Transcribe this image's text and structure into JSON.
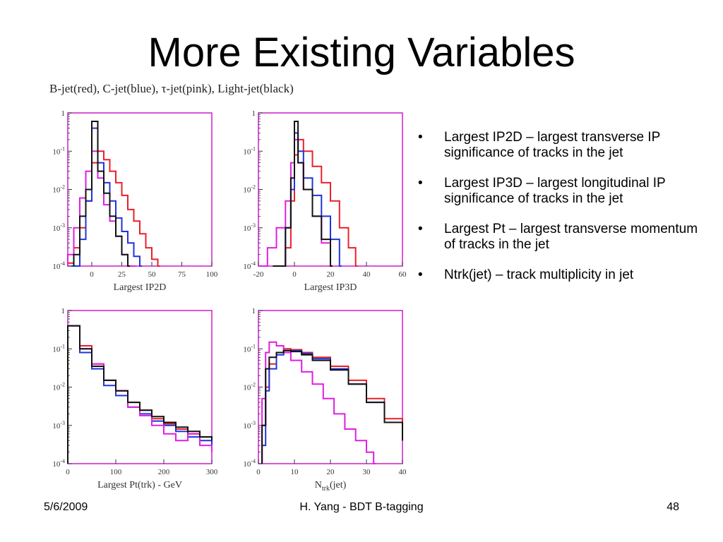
{
  "slide": {
    "title": "More Existing Variables",
    "legend_text": "B-jet(red), C-jet(blue), τ-jet(pink), Light-jet(black)",
    "bullets": [
      "Largest IP2D – largest transverse IP significance of tracks in the jet",
      "Largest IP3D – largest longitudinal IP significance of tracks in the jet",
      "Largest Pt – largest transverse momentum of tracks in the jet",
      "Ntrk(jet) – track multiplicity in jet"
    ],
    "bullet_glyph": "•",
    "footer": {
      "date": "5/6/2009",
      "center": "H. Yang - BDT B-tagging",
      "page": "48"
    }
  },
  "colors": {
    "b_jet": "#e8202a",
    "c_jet": "#1f34d8",
    "tau_jet": "#e01ee0",
    "light_jet": "#111111",
    "frame": "#cc1fcc"
  },
  "chart_data": [
    {
      "type": "line",
      "xlabel": "Largest IP2D",
      "xlim": [
        -20,
        100
      ],
      "ylim": [
        0.0001,
        1
      ],
      "yscale": "log",
      "xticks": [
        0,
        25,
        50,
        75,
        100
      ],
      "yticks": [
        "10^-4",
        "10^-3",
        "10^-2",
        "10^-1",
        "1"
      ],
      "series": [
        {
          "name": "B-jet",
          "color": "red",
          "x": [
            -20,
            -15,
            -10,
            -5,
            0,
            5,
            10,
            15,
            20,
            25,
            30,
            35,
            40,
            45,
            50,
            55
          ],
          "y": [
            0.00012,
            0.0003,
            0.001,
            0.005,
            0.05,
            0.1,
            0.06,
            0.03,
            0.015,
            0.007,
            0.003,
            0.0015,
            0.0007,
            0.0003,
            0.00015,
            0.0001
          ]
        },
        {
          "name": "C-jet",
          "color": "blue",
          "x": [
            -17,
            -10,
            -5,
            0,
            5,
            10,
            15,
            20,
            25,
            30,
            35,
            40
          ],
          "y": [
            0.0001,
            0.0005,
            0.005,
            0.4,
            0.05,
            0.015,
            0.005,
            0.0018,
            0.0008,
            0.0004,
            0.00018,
            0.0001
          ]
        },
        {
          "name": "τ-jet",
          "color": "pink",
          "x": [
            -20,
            -15,
            -10,
            -5,
            0,
            5,
            10,
            15,
            20,
            25,
            30,
            35
          ],
          "y": [
            0.0002,
            0.001,
            0.006,
            0.03,
            0.1,
            0.02,
            0.004,
            0.0015,
            0.0006,
            0.0002,
            0.0001,
            0.0001
          ]
        },
        {
          "name": "Light-jet",
          "color": "black",
          "x": [
            -15,
            -10,
            -5,
            0,
            5,
            10,
            15,
            20,
            25,
            30
          ],
          "y": [
            0.0002,
            0.002,
            0.01,
            0.6,
            0.03,
            0.008,
            0.002,
            0.0006,
            0.0002,
            0.0001
          ]
        }
      ]
    },
    {
      "type": "line",
      "xlabel": "Largest IP3D",
      "xlim": [
        -20,
        60
      ],
      "ylim": [
        0.0001,
        1
      ],
      "yscale": "log",
      "xticks": [
        -20,
        0,
        20,
        40,
        60
      ],
      "yticks": [
        "10^-4",
        "10^-3",
        "10^-2",
        "10^-1",
        "1"
      ],
      "series": [
        {
          "name": "B-jet",
          "color": "red",
          "x": [
            -5,
            -2,
            0,
            2,
            5,
            10,
            15,
            20,
            25,
            30,
            34
          ],
          "y": [
            0.0003,
            0.005,
            0.08,
            0.2,
            0.1,
            0.04,
            0.015,
            0.005,
            0.001,
            0.0003,
            0.0001
          ]
        },
        {
          "name": "C-jet",
          "color": "blue",
          "x": [
            -12,
            -5,
            -2,
            0,
            2,
            5,
            10,
            15,
            20,
            25
          ],
          "y": [
            0.0001,
            0.001,
            0.01,
            0.3,
            0.1,
            0.02,
            0.007,
            0.002,
            0.0005,
            0.0001
          ]
        },
        {
          "name": "τ-jet",
          "color": "pink",
          "x": [
            -20,
            -15,
            -10,
            -5,
            -2,
            0,
            2,
            5,
            10,
            15,
            20
          ],
          "y": [
            0.0001,
            0.0003,
            0.001,
            0.005,
            0.05,
            0.2,
            0.05,
            0.01,
            0.002,
            0.0004,
            0.0001
          ]
        },
        {
          "name": "Light-jet",
          "color": "black",
          "x": [
            -12,
            -5,
            -2,
            0,
            2,
            5,
            10,
            15,
            20
          ],
          "y": [
            0.0001,
            0.001,
            0.02,
            0.6,
            0.05,
            0.01,
            0.002,
            0.0005,
            0.0001
          ]
        }
      ]
    },
    {
      "type": "line",
      "xlabel": "Largest Pt(trk) - GeV",
      "xlim": [
        0,
        300
      ],
      "ylim": [
        0.0001,
        1
      ],
      "yscale": "log",
      "xticks": [
        0,
        100,
        200,
        300
      ],
      "yticks": [
        "10^-4",
        "10^-3",
        "10^-2",
        "10^-1",
        "1"
      ],
      "series": [
        {
          "name": "B-jet",
          "color": "red",
          "x": [
            0,
            25,
            50,
            75,
            100,
            125,
            150,
            175,
            200,
            225,
            250,
            275,
            300
          ],
          "y": [
            0.4,
            0.12,
            0.04,
            0.015,
            0.008,
            0.004,
            0.0025,
            0.0015,
            0.0011,
            0.0008,
            0.0006,
            0.0005,
            0.0004
          ]
        },
        {
          "name": "C-jet",
          "color": "blue",
          "x": [
            0,
            25,
            50,
            75,
            100,
            125,
            150,
            175,
            200,
            225,
            250,
            275,
            300
          ],
          "y": [
            0.4,
            0.08,
            0.03,
            0.011,
            0.006,
            0.003,
            0.002,
            0.0013,
            0.001,
            0.0007,
            0.0005,
            0.0004,
            0.0003
          ]
        },
        {
          "name": "τ-jet",
          "color": "pink",
          "x": [
            0,
            25,
            50,
            75,
            100,
            125,
            150,
            175,
            200,
            225,
            250,
            275,
            300
          ],
          "y": [
            0.4,
            0.1,
            0.04,
            0.015,
            0.008,
            0.003,
            0.0018,
            0.001,
            0.0006,
            0.0004,
            0.0006,
            0.0003,
            0.0002
          ]
        },
        {
          "name": "Light-jet",
          "color": "black",
          "x": [
            0,
            25,
            50,
            75,
            100,
            125,
            150,
            175,
            200,
            225,
            250,
            275,
            300
          ],
          "y": [
            0.4,
            0.1,
            0.035,
            0.015,
            0.008,
            0.004,
            0.0025,
            0.0017,
            0.0012,
            0.0009,
            0.0007,
            0.0005,
            0.0004
          ]
        }
      ]
    },
    {
      "type": "line",
      "xlabel": "N_trk(jet)",
      "xlim": [
        0,
        40
      ],
      "ylim": [
        0.0001,
        1
      ],
      "yscale": "log",
      "xticks": [
        0,
        10,
        20,
        30,
        40
      ],
      "yticks": [
        "10^-4",
        "10^-3",
        "10^-2",
        "10^-1",
        "1"
      ],
      "series": [
        {
          "name": "B-jet",
          "color": "red",
          "x": [
            1,
            2,
            3,
            5,
            7,
            9,
            12,
            15,
            20,
            25,
            30,
            35,
            40
          ],
          "y": [
            0.001,
            0.01,
            0.04,
            0.08,
            0.1,
            0.095,
            0.08,
            0.06,
            0.035,
            0.015,
            0.005,
            0.0015,
            0.0005
          ]
        },
        {
          "name": "C-jet",
          "color": "blue",
          "x": [
            1,
            2,
            3,
            5,
            7,
            9,
            12,
            15,
            20,
            25,
            30,
            35,
            40
          ],
          "y": [
            0.0003,
            0.008,
            0.03,
            0.07,
            0.09,
            0.09,
            0.075,
            0.055,
            0.03,
            0.012,
            0.004,
            0.0012,
            0.0004
          ]
        },
        {
          "name": "τ-jet",
          "color": "pink",
          "x": [
            1,
            2,
            3,
            5,
            7,
            9,
            12,
            15,
            18,
            21,
            24,
            27,
            30,
            32
          ],
          "y": [
            0.005,
            0.08,
            0.15,
            0.12,
            0.08,
            0.05,
            0.025,
            0.012,
            0.005,
            0.002,
            0.0008,
            0.0004,
            0.0002,
            0.0001
          ]
        },
        {
          "name": "Light-jet",
          "color": "black",
          "x": [
            1,
            2,
            3,
            5,
            7,
            9,
            12,
            15,
            20,
            25,
            30,
            35,
            40
          ],
          "y": [
            0.001,
            0.03,
            0.06,
            0.08,
            0.09,
            0.085,
            0.07,
            0.05,
            0.028,
            0.012,
            0.004,
            0.0012,
            0.0004
          ]
        }
      ]
    }
  ]
}
